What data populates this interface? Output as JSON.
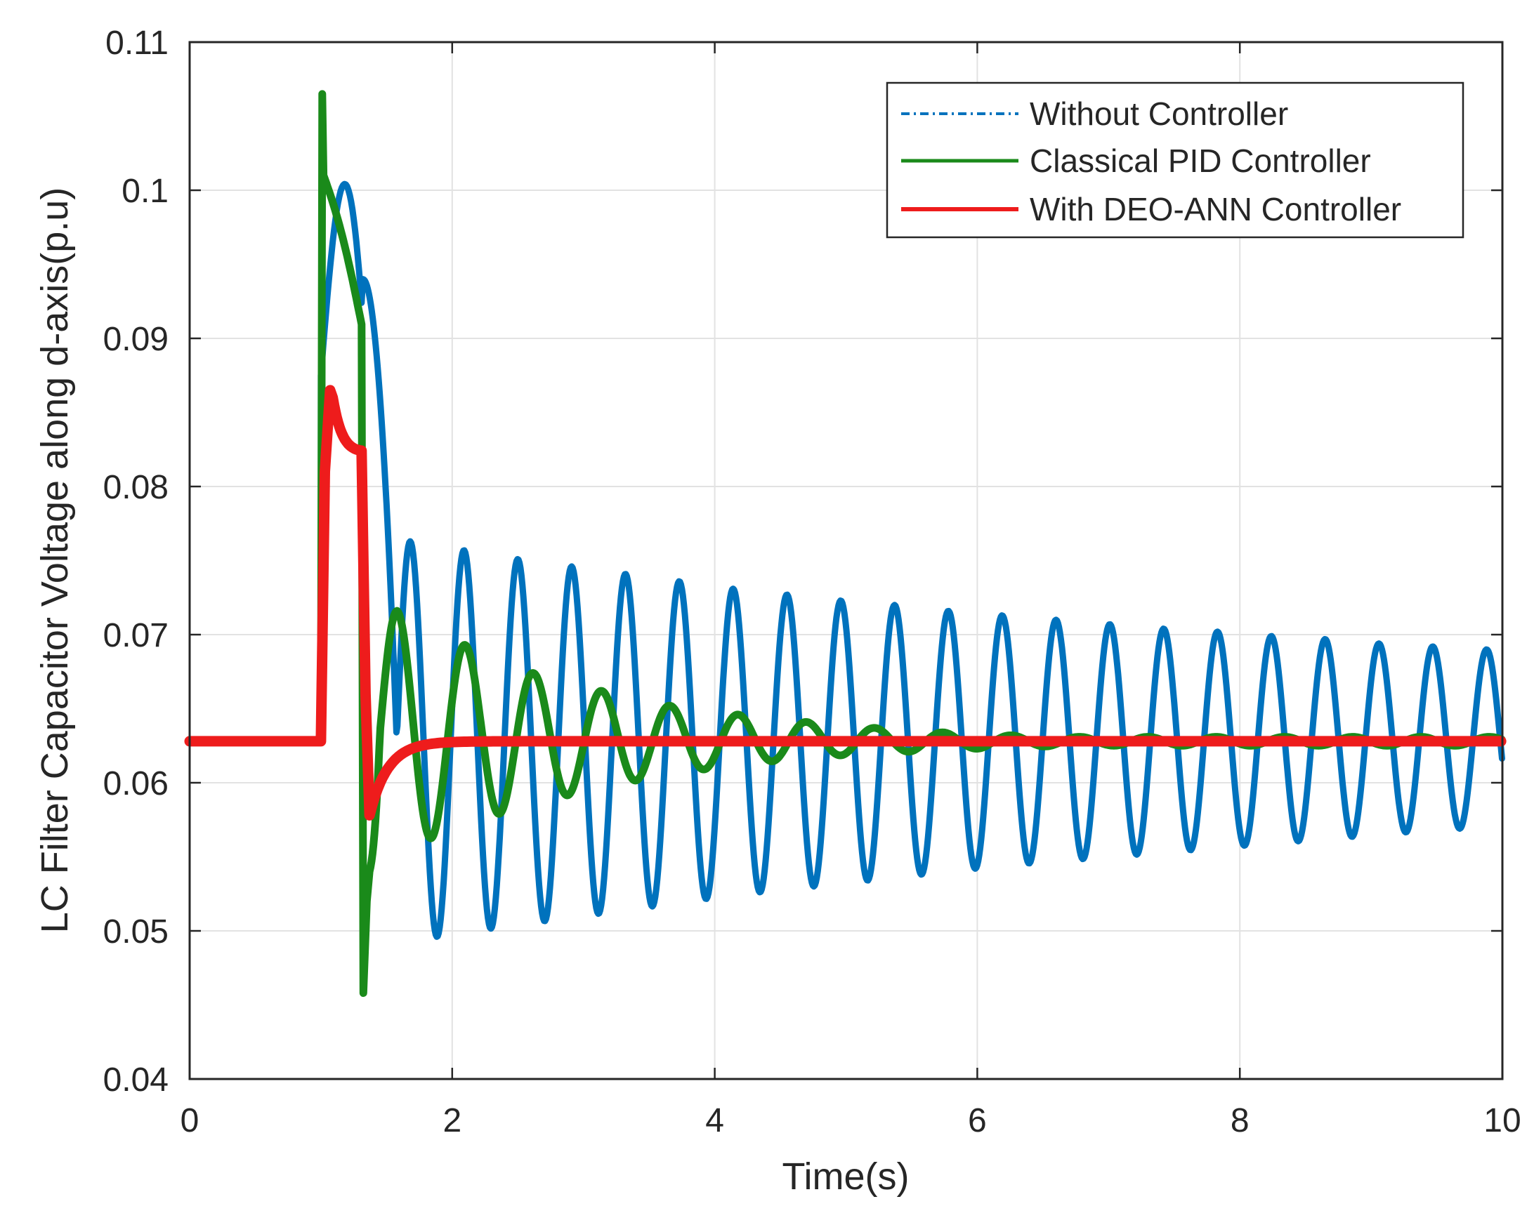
{
  "chart_data": {
    "type": "line",
    "title": "",
    "xlabel": "Time(s)",
    "ylabel": "LC Filter Capacitor Voltage along d-axis(p.u)",
    "xlim": [
      0,
      10
    ],
    "ylim": [
      0.04,
      0.11
    ],
    "xticks": [
      0,
      2,
      4,
      6,
      8,
      10
    ],
    "xtick_labels": [
      "0",
      "2",
      "4",
      "6",
      "8",
      "10"
    ],
    "yticks": [
      0.04,
      0.05,
      0.06,
      0.07,
      0.08,
      0.09,
      0.1,
      0.11
    ],
    "ytick_labels": [
      "0.04",
      "0.05",
      "0.06",
      "0.07",
      "0.08",
      "0.09",
      "0.1",
      "0.11"
    ],
    "grid": true,
    "legend_position": "top-right",
    "step_time": 1.0,
    "release_time": 1.32,
    "steady_state": 0.0628,
    "series": [
      {
        "name": "Without Controller",
        "color": "#0072BD",
        "style": "dash-dot",
        "transient_peak": 0.104,
        "oscillation_peaks": [
          0.0763,
          0.0757,
          0.0751,
          0.0746,
          0.0741,
          0.0736,
          0.0731,
          0.0727,
          0.0723,
          0.072,
          0.0716,
          0.0713,
          0.071,
          0.0707,
          0.0704,
          0.0702,
          0.0699,
          0.0697,
          0.0694,
          0.0692,
          0.069
        ],
        "oscillation_troughs": [
          0.0493,
          0.0499,
          0.0504,
          0.0509,
          0.0514,
          0.0519,
          0.0524,
          0.0528,
          0.0532,
          0.0536,
          0.054,
          0.0544,
          0.0547,
          0.055,
          0.0553,
          0.0556,
          0.0559,
          0.0562,
          0.0565,
          0.0568,
          0.057
        ],
        "oscillation_period_s": 0.41,
        "final_value_at_10s": 0.061
      },
      {
        "name": "Classical PID Controller",
        "color": "#1A8A1A",
        "style": "solid",
        "transient_peak": 0.1065,
        "transient_min": 0.0458,
        "oscillation_peaks": [
          0.0716,
          0.0693,
          0.0674,
          0.0662,
          0.0652,
          0.0646,
          0.0641,
          0.0637,
          0.0634,
          0.0632,
          0.0631
        ],
        "oscillation_troughs": [
          0.0553,
          0.0572,
          0.0586,
          0.0597,
          0.0606,
          0.0612,
          0.0617,
          0.062,
          0.0622,
          0.0624,
          0.0625
        ],
        "oscillation_period_s": 0.52,
        "final_value_at_10s": 0.0628
      },
      {
        "name": "With DEO-ANN Controller",
        "color": "#EE1C1C",
        "style": "solid",
        "transient_peak": 0.0865,
        "value_at_release": 0.0822,
        "undershoot_min": 0.0578,
        "settling_time_s": 2.0,
        "final_value_at_10s": 0.0628
      }
    ]
  }
}
